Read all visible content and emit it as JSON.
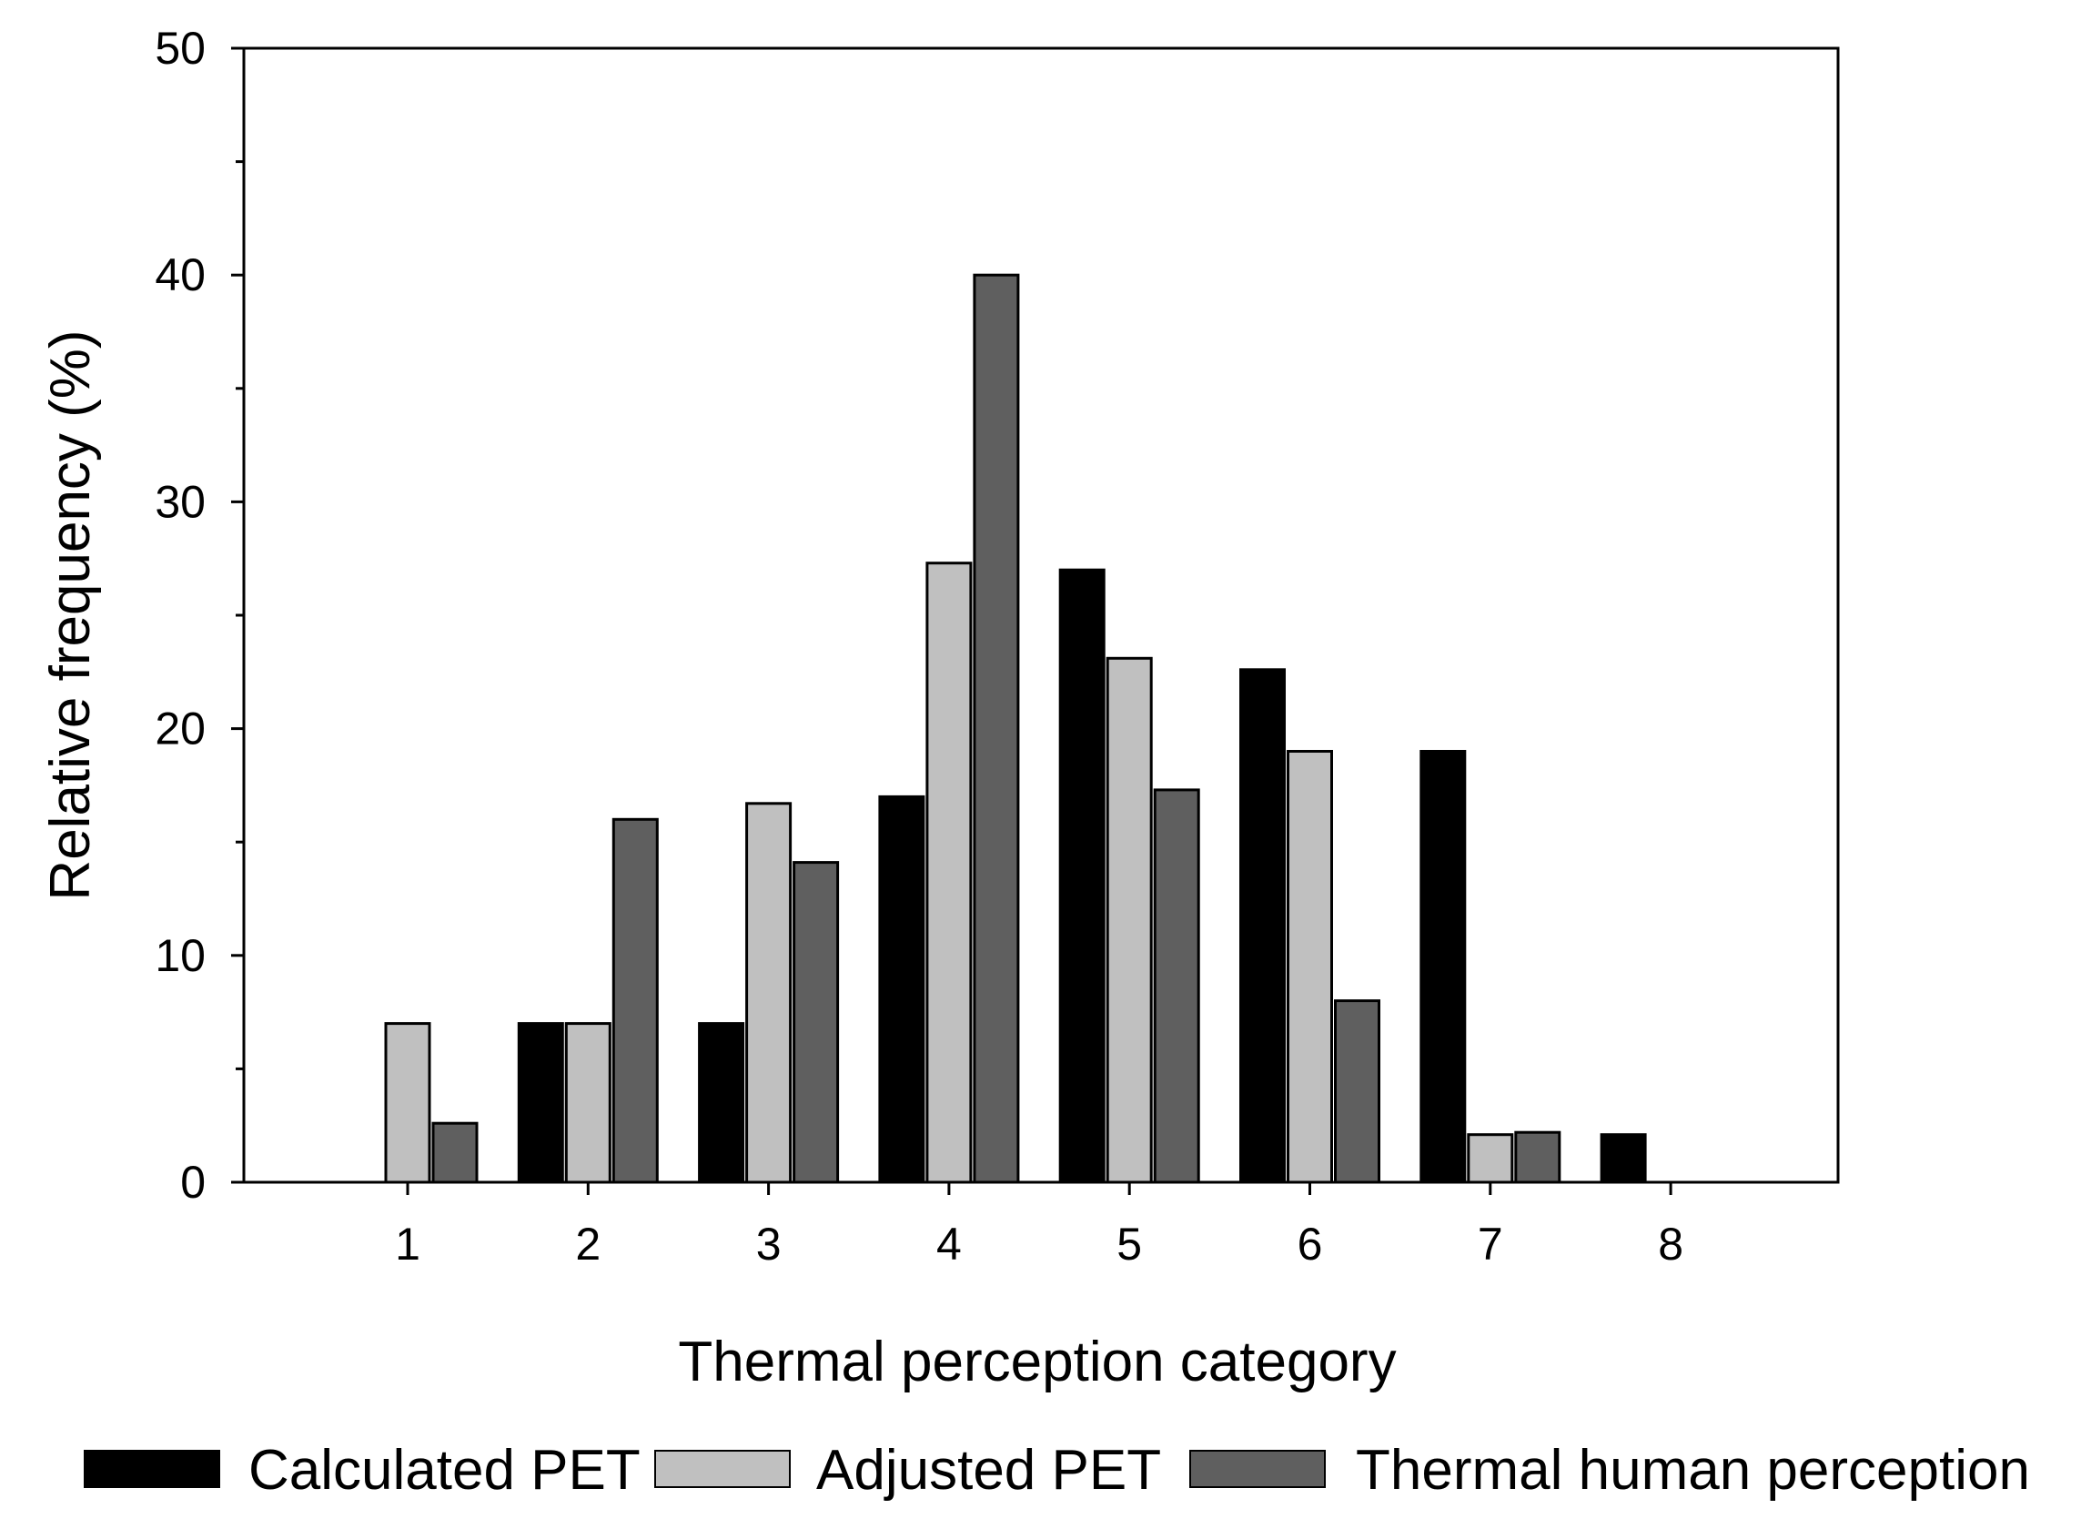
{
  "chart_data": {
    "type": "bar",
    "title": "",
    "xlabel": "Thermal perception category",
    "ylabel": "Relative frequency (%)",
    "ylim": [
      0,
      50
    ],
    "y_major_ticks": [
      0,
      10,
      20,
      30,
      40,
      50
    ],
    "y_minor_step": 5,
    "grid": false,
    "legend_position": "bottom",
    "categories": [
      "1",
      "2",
      "3",
      "4",
      "5",
      "6",
      "7",
      "8"
    ],
    "series": [
      {
        "name": "Calculated PET",
        "color": "#000000",
        "values": [
          0,
          7,
          7,
          17,
          27,
          22.6,
          19,
          2.1
        ]
      },
      {
        "name": "Adjusted PET",
        "color": "#c0c0c0",
        "values": [
          7,
          7,
          16.7,
          27.3,
          23.1,
          19,
          2.1,
          0
        ]
      },
      {
        "name": "Thermal human perception",
        "color": "#5f5f5f",
        "values": [
          2.6,
          16,
          14.1,
          40,
          17.3,
          8,
          2.2,
          0
        ]
      }
    ]
  }
}
